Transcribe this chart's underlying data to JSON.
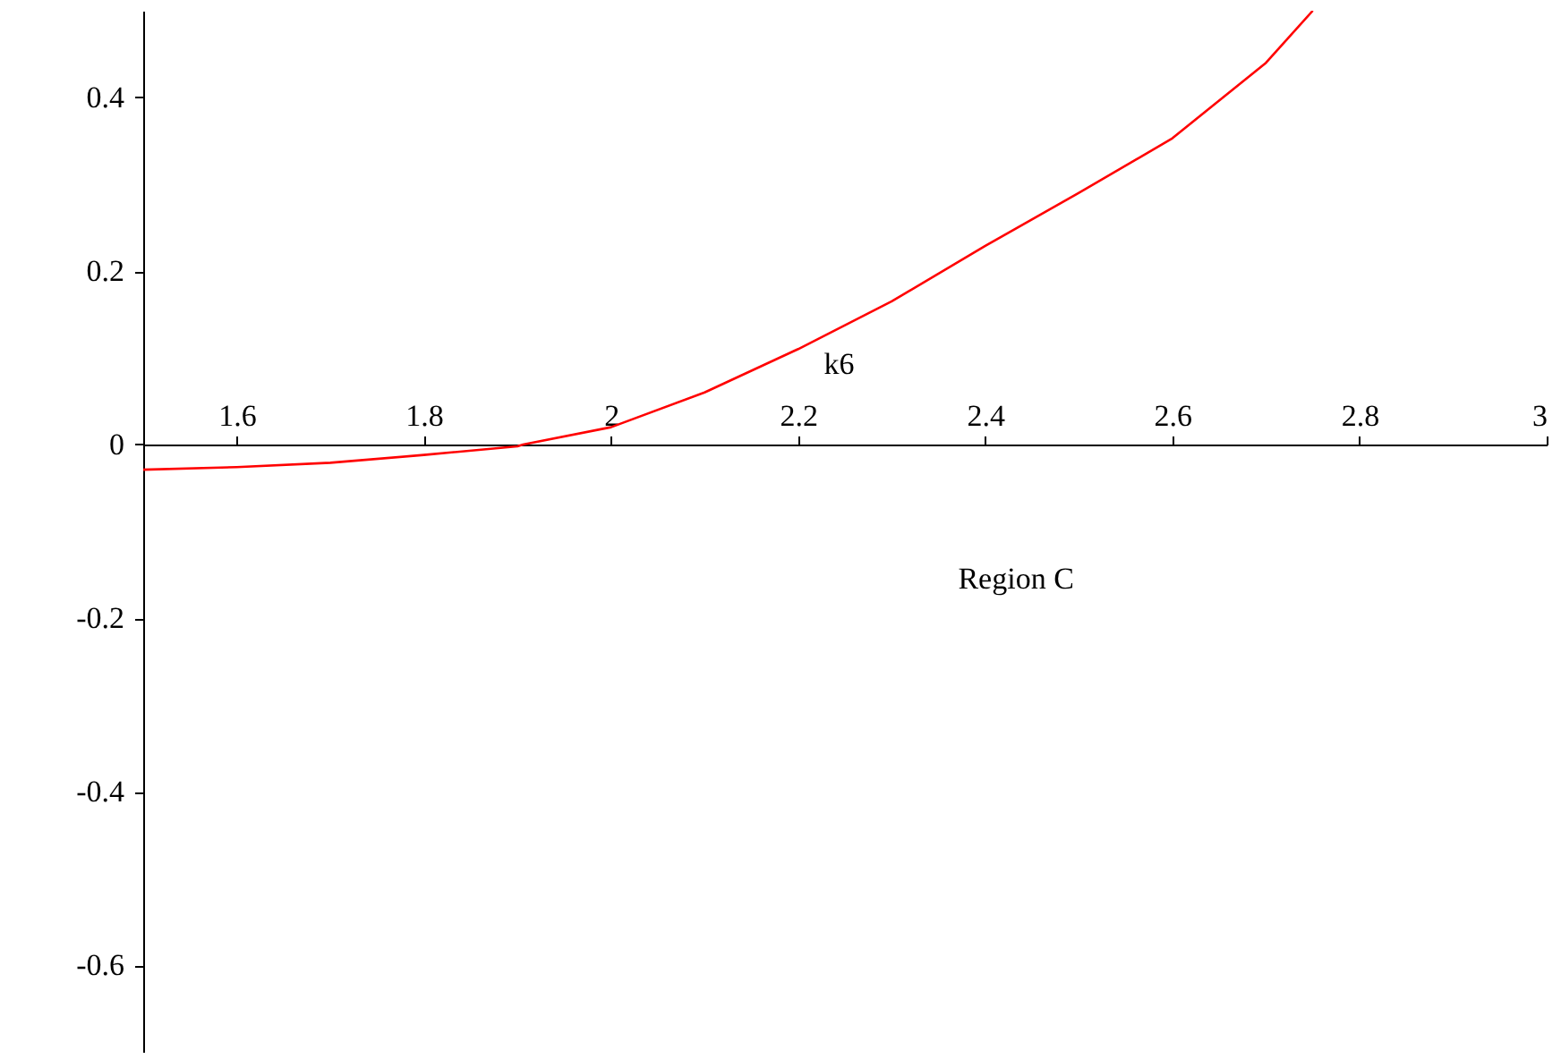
{
  "chart_data": {
    "type": "line",
    "xlabel": "Region C",
    "x": [
      1.5,
      1.6,
      1.7,
      1.8,
      1.9,
      1.906,
      2.0,
      2.1,
      2.2,
      2.3,
      2.4,
      2.5,
      2.6,
      2.7,
      2.75
    ],
    "series": [
      {
        "color": "#ff0000",
        "values": [
          -0.029,
          -0.026,
          -0.021,
          -0.012,
          -0.002,
          0,
          0.02,
          0.06,
          0.11,
          0.165,
          0.229,
          0.29,
          0.353,
          0.44,
          0.5
        ]
      }
    ],
    "xlim": [
      1.5,
      3
    ],
    "xticks": [
      1.6,
      1.8,
      2,
      2.2,
      2.4,
      2.6,
      2.8,
      3
    ],
    "ylim": [
      -0.7,
      0.5
    ],
    "yticks": [
      -0.6,
      -0.4,
      -0.2,
      0,
      0.2,
      0.4
    ],
    "annotations": [
      "k6"
    ],
    "grid": false
  }
}
